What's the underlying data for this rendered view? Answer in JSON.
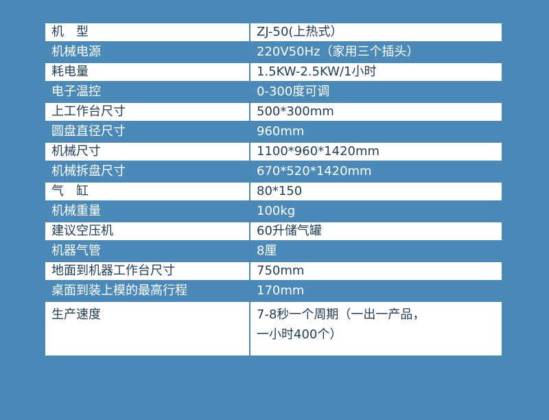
{
  "rows": [
    {
      "label": "机　型",
      "value": "ZJ-50(上热式）"
    },
    {
      "label": "机械电源",
      "value": "220V50Hz（家用三个插头）"
    },
    {
      "label": "耗电量",
      "value": "1.5KW-2.5KW/1小时"
    },
    {
      "label": "电子温控",
      "value": "0-300度可调"
    },
    {
      "label": "上工作台尺寸",
      "value": "500*300mm"
    },
    {
      "label": "圆盘直径尺寸",
      "value": "960mm"
    },
    {
      "label": "机械尺寸",
      "value": "1100*960*1420mm"
    },
    {
      "label": "机械拆盘尺寸",
      "value": "670*520*1420mm"
    },
    {
      "label": "气　缸",
      "value": "80*150"
    },
    {
      "label": "机械重量",
      "value": "100kg"
    },
    {
      "label": "建议空压机",
      "value": "60升储气罐"
    },
    {
      "label": "机器气管",
      "value": "8厘"
    },
    {
      "label": "地面到机器工作台尺寸",
      "value": "750mm"
    },
    {
      "label": "桌面到装上模的最高行程",
      "value": "170mm"
    },
    {
      "label": "生产速度",
      "value": "7-8秒一个周期（一出一产品，",
      "value2": "一小时400个）"
    }
  ]
}
